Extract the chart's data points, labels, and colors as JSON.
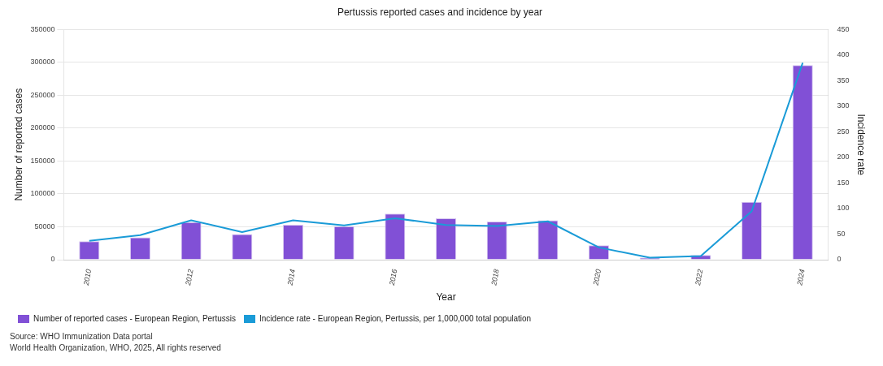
{
  "chart_data": {
    "type": "bar",
    "title": "Pertussis reported cases and incidence by year",
    "xlabel": "Year",
    "ylabel": "Number of reported cases",
    "y2label": "Incidence rate",
    "categories": [
      "2010",
      null,
      "2012",
      null,
      "2014",
      null,
      "2016",
      null,
      "2018",
      null,
      "2020",
      null,
      "2022",
      null,
      "2024"
    ],
    "series": [
      {
        "name": "Number of reported cases - European Region, Pertussis",
        "color": "#8150d6",
        "values": [
          28000,
          34000,
          57000,
          39000,
          53000,
          51000,
          70000,
          63000,
          58000,
          60000,
          22000,
          3000,
          7000,
          88000,
          296000
        ]
      },
      {
        "name": "Incidence rate - European Region, Pertussis, per 1,000,000 total population",
        "type": "line",
        "axis": "y2",
        "color": "#1a9bd7",
        "values": [
          37,
          48,
          77,
          54,
          77,
          67,
          81,
          68,
          66,
          75,
          24,
          4,
          7,
          95,
          385
        ]
      }
    ],
    "ylim": [
      0,
      350000
    ],
    "yticks": [
      0,
      50000,
      100000,
      150000,
      200000,
      250000,
      300000,
      350000
    ],
    "y2lim": [
      0,
      450
    ],
    "y2ticks": [
      0,
      50,
      100,
      150,
      200,
      250,
      300,
      350,
      400,
      450
    ],
    "grid": "y",
    "legend": "bottom left",
    "marker": "none",
    "annotations": [
      "Source: WHO Immunization Data portal",
      "World Health Organization, WHO, 2025, All rights reserved"
    ]
  }
}
